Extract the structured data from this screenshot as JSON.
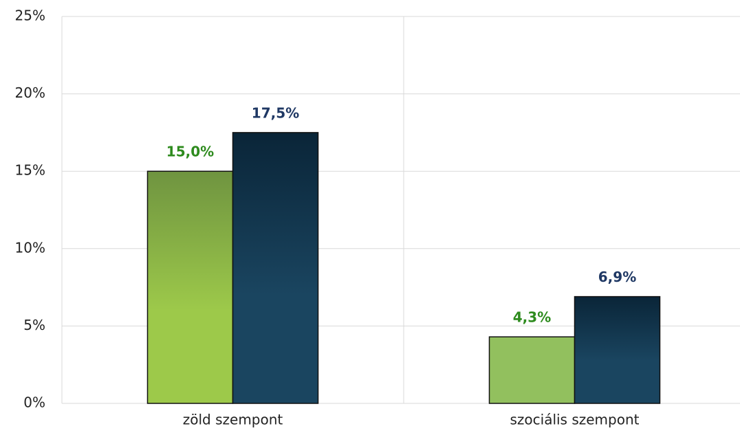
{
  "chart_data": {
    "type": "bar",
    "categories": [
      "zöld szempont",
      "szociális szempont"
    ],
    "series": [
      {
        "color": "#92c05e",
        "label_color": "#2e8b1e",
        "values": [
          15.0,
          4.3
        ],
        "value_labels": [
          "15,0%",
          "4,3%"
        ]
      },
      {
        "color": "#1a4560",
        "label_color": "#1f3864",
        "values": [
          17.5,
          6.9
        ],
        "value_labels": [
          "17,5%",
          "6,9%"
        ]
      }
    ],
    "ylim": [
      0,
      25
    ],
    "yticks": [
      {
        "value": 0,
        "label": "0%"
      },
      {
        "value": 5,
        "label": "5%"
      },
      {
        "value": 10,
        "label": "10%"
      },
      {
        "value": 15,
        "label": "15%"
      },
      {
        "value": 20,
        "label": "20%"
      },
      {
        "value": 25,
        "label": "25%"
      }
    ],
    "grid": true
  }
}
